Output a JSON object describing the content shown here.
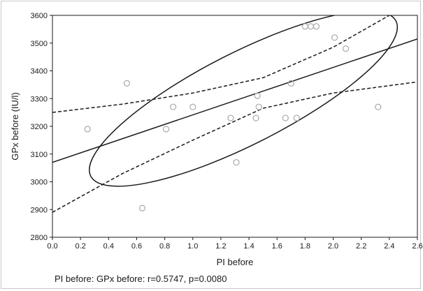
{
  "chart_data": {
    "type": "scatter",
    "xlabel": "PI before",
    "ylabel": "GPx before (IU/l)",
    "xlim": [
      0.0,
      2.6
    ],
    "ylim": [
      2800,
      3600
    ],
    "xticks": [
      "0.0",
      "0.2",
      "0.4",
      "0.6",
      "0.8",
      "1.0",
      "1.2",
      "1.4",
      "1.6",
      "1.8",
      "2.0",
      "2.2",
      "2.4",
      "2.6"
    ],
    "yticks": [
      "2800",
      "2900",
      "3000",
      "3100",
      "3200",
      "3300",
      "3400",
      "3500",
      "3600"
    ],
    "grid": false,
    "caption": "PI before: GPx before: r=0.5747, p=0.0080",
    "points": [
      {
        "x": 0.25,
        "y": 3190
      },
      {
        "x": 0.53,
        "y": 3355
      },
      {
        "x": 0.64,
        "y": 2905
      },
      {
        "x": 0.81,
        "y": 3190
      },
      {
        "x": 0.86,
        "y": 3270
      },
      {
        "x": 1.0,
        "y": 3270
      },
      {
        "x": 1.27,
        "y": 3230
      },
      {
        "x": 1.31,
        "y": 3070
      },
      {
        "x": 1.45,
        "y": 3230
      },
      {
        "x": 1.46,
        "y": 3310
      },
      {
        "x": 1.47,
        "y": 3270
      },
      {
        "x": 1.66,
        "y": 3230
      },
      {
        "x": 1.7,
        "y": 3355
      },
      {
        "x": 1.74,
        "y": 3230
      },
      {
        "x": 1.8,
        "y": 3560
      },
      {
        "x": 1.84,
        "y": 3560
      },
      {
        "x": 1.88,
        "y": 3560
      },
      {
        "x": 2.01,
        "y": 3520
      },
      {
        "x": 2.09,
        "y": 3480
      },
      {
        "x": 2.32,
        "y": 3270
      }
    ],
    "regression": {
      "x": [
        0.0,
        2.6
      ],
      "y": [
        3070,
        3515
      ]
    },
    "ci_upper": {
      "x": [
        0.0,
        0.5,
        1.0,
        1.5,
        2.0,
        2.4
      ],
      "y": [
        3250,
        3280,
        3320,
        3375,
        3485,
        3600
      ]
    },
    "ci_lower": {
      "x": [
        0.0,
        0.5,
        1.0,
        1.5,
        2.0,
        2.6
      ],
      "y": [
        2890,
        3030,
        3150,
        3265,
        3320,
        3360
      ]
    },
    "ellipse": {
      "center_x": 1.36,
      "center_y": 3300,
      "rx": 1.22,
      "ry_data": 165,
      "angle_deg": -27
    },
    "colors": {
      "points": "#a8a8a8",
      "lines": "#1a1a1a",
      "frame": "#c8c8c8"
    }
  }
}
